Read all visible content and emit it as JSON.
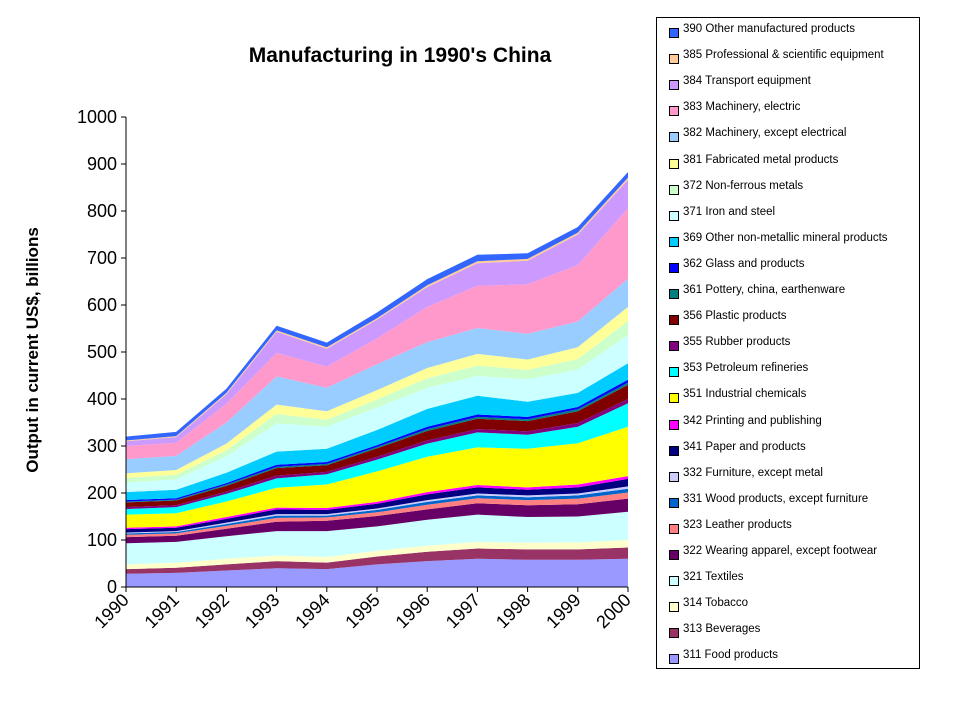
{
  "chart_data": {
    "type": "area",
    "stacked": true,
    "title": "Manufacturing in 1990's China",
    "ylabel": "Output in current US$, billions",
    "xlabel": "",
    "x": [
      "1990",
      "1991",
      "1992",
      "1993",
      "1994",
      "1995",
      "1996",
      "1997",
      "1998",
      "1999",
      "2000"
    ],
    "ylim": [
      0,
      1000
    ],
    "yticks": [
      0,
      100,
      200,
      300,
      400,
      500,
      600,
      700,
      800,
      900,
      1000
    ],
    "grid": false,
    "legend_position": "right",
    "series": [
      {
        "name": "311 Food products",
        "color": "#9999FF",
        "values": [
          28,
          30,
          35,
          40,
          38,
          48,
          55,
          60,
          58,
          58,
          60
        ]
      },
      {
        "name": "313 Beverages",
        "color": "#993366",
        "values": [
          10,
          11,
          13,
          15,
          14,
          17,
          20,
          22,
          22,
          22,
          24
        ]
      },
      {
        "name": "314 Tobacco",
        "color": "#FFFFCC",
        "values": [
          10,
          11,
          12,
          12,
          12,
          12,
          13,
          14,
          14,
          15,
          16
        ]
      },
      {
        "name": "321 Textiles",
        "color": "#CCFFFF",
        "values": [
          45,
          44,
          48,
          52,
          55,
          52,
          55,
          58,
          55,
          55,
          60
        ]
      },
      {
        "name": "322 Wearing apparel, except footwear",
        "color": "#660066",
        "values": [
          13,
          13,
          16,
          20,
          22,
          22,
          22,
          24,
          25,
          26,
          28
        ]
      },
      {
        "name": "323 Leather products",
        "color": "#FF8080",
        "values": [
          5,
          5,
          6,
          8,
          7,
          8,
          10,
          11,
          11,
          12,
          13
        ]
      },
      {
        "name": "331 Wood products, except furniture",
        "color": "#0066CC",
        "values": [
          3,
          3,
          4,
          5,
          4,
          5,
          6,
          6,
          6,
          7,
          8
        ]
      },
      {
        "name": "332 Furniture, except metal",
        "color": "#CCCCFF",
        "values": [
          2,
          2,
          3,
          3,
          3,
          3,
          4,
          4,
          4,
          4,
          5
        ]
      },
      {
        "name": "341 Paper and products",
        "color": "#000080",
        "values": [
          7,
          7,
          8,
          10,
          9,
          10,
          12,
          13,
          12,
          13,
          16
        ]
      },
      {
        "name": "342 Printing and publishing",
        "color": "#FF00FF",
        "values": [
          3,
          3,
          4,
          4,
          4,
          4,
          5,
          5,
          5,
          6,
          6
        ]
      },
      {
        "name": "351 Industrial chemicals",
        "color": "#FFFF00",
        "values": [
          28,
          28,
          33,
          42,
          50,
          65,
          75,
          80,
          82,
          88,
          105
        ]
      },
      {
        "name": "353 Petroleum refineries",
        "color": "#00FFFF",
        "values": [
          12,
          13,
          16,
          20,
          22,
          25,
          28,
          32,
          30,
          35,
          50
        ]
      },
      {
        "name": "355 Rubber products",
        "color": "#800080",
        "values": [
          4,
          4,
          5,
          6,
          5,
          6,
          7,
          7,
          7,
          8,
          9
        ]
      },
      {
        "name": "356 Plastic products",
        "color": "#800000",
        "values": [
          10,
          10,
          12,
          16,
          14,
          18,
          20,
          22,
          22,
          25,
          30
        ]
      },
      {
        "name": "361 Pottery, china, earthenware",
        "color": "#008080",
        "values": [
          2,
          2,
          3,
          3,
          3,
          3,
          4,
          4,
          4,
          4,
          5
        ]
      },
      {
        "name": "362 Glass and products",
        "color": "#0000FF",
        "values": [
          3,
          3,
          3,
          4,
          4,
          4,
          5,
          5,
          5,
          5,
          6
        ]
      },
      {
        "name": "369 Other non-metallic mineral products",
        "color": "#00CCFF",
        "values": [
          17,
          18,
          22,
          28,
          28,
          32,
          38,
          40,
          32,
          30,
          35
        ]
      },
      {
        "name": "371 Iron and steel",
        "color": "#CCFFFF",
        "values": [
          20,
          22,
          35,
          60,
          47,
          48,
          45,
          42,
          48,
          50,
          60
        ]
      },
      {
        "name": "372 Non-ferrous metals",
        "color": "#CCFFCC",
        "values": [
          10,
          10,
          13,
          20,
          15,
          17,
          20,
          22,
          20,
          22,
          30
        ]
      },
      {
        "name": "381 Fabricated metal products",
        "color": "#FFFF99",
        "values": [
          10,
          10,
          14,
          20,
          18,
          20,
          22,
          25,
          22,
          25,
          30
        ]
      },
      {
        "name": "382 Machinery, except electrical",
        "color": "#99CCFF",
        "values": [
          30,
          30,
          45,
          60,
          50,
          55,
          55,
          55,
          55,
          55,
          60
        ]
      },
      {
        "name": "383 Machinery, electric",
        "color": "#FF99CC",
        "values": [
          28,
          28,
          40,
          50,
          45,
          55,
          75,
          90,
          105,
          120,
          150
        ]
      },
      {
        "name": "384 Transport equipment",
        "color": "#CC99FF",
        "values": [
          10,
          12,
          20,
          45,
          38,
          40,
          42,
          48,
          50,
          65,
          60
        ]
      },
      {
        "name": "385 Professional & scientific equipment",
        "color": "#FFCC99",
        "values": [
          2,
          2,
          3,
          3,
          3,
          3,
          4,
          4,
          4,
          4,
          5
        ]
      },
      {
        "name": "390 Other manufactured products",
        "color": "#3366FF",
        "values": [
          8,
          9,
          9,
          10,
          10,
          12,
          13,
          14,
          12,
          12,
          12
        ]
      }
    ]
  }
}
